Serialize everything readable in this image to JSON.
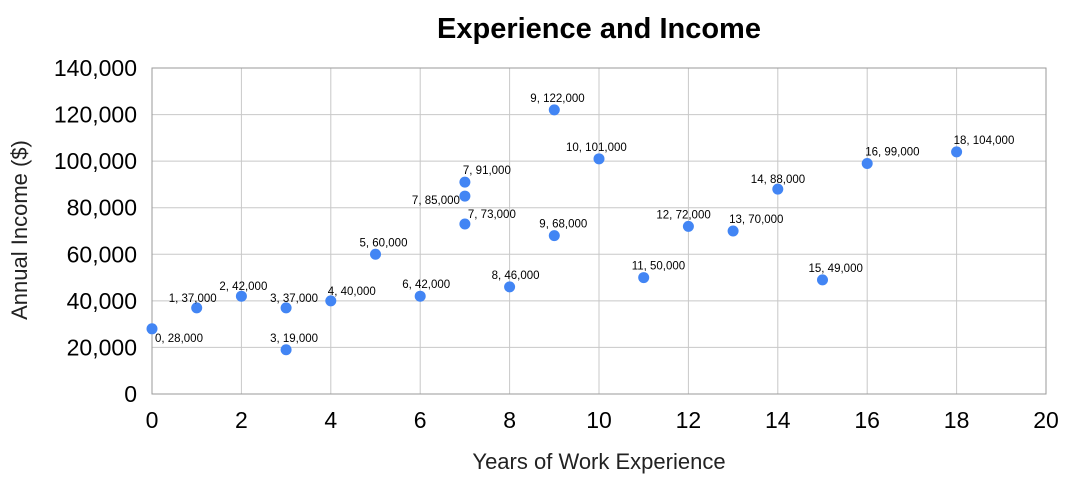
{
  "chart_data": {
    "type": "scatter",
    "title": "Experience and Income",
    "xlabel": "Years of Work Experience",
    "ylabel": "Annual Income ($)",
    "xlim": [
      0,
      20
    ],
    "ylim": [
      0,
      140000
    ],
    "x_ticks": [
      "0",
      "2",
      "4",
      "6",
      "8",
      "10",
      "12",
      "14",
      "16",
      "18",
      "20"
    ],
    "y_ticks": [
      "0",
      "20,000",
      "40,000",
      "60,000",
      "80,000",
      "100,000",
      "120,000",
      "140,000"
    ],
    "grid": true,
    "legend": "none",
    "colors": {
      "point": "#4285f4"
    },
    "points": [
      {
        "x": 0,
        "y": 28000,
        "label": "0, 28,000"
      },
      {
        "x": 1,
        "y": 37000,
        "label": "1, 37,000"
      },
      {
        "x": 2,
        "y": 42000,
        "label": "2, 42,000"
      },
      {
        "x": 3,
        "y": 37000,
        "label": "3, 37,000"
      },
      {
        "x": 3,
        "y": 19000,
        "label": "3, 19,000"
      },
      {
        "x": 4,
        "y": 40000,
        "label": "4, 40,000"
      },
      {
        "x": 5,
        "y": 60000,
        "label": "5, 60,000"
      },
      {
        "x": 6,
        "y": 42000,
        "label": "6, 42,000"
      },
      {
        "x": 7,
        "y": 91000,
        "label": "7, 91,000"
      },
      {
        "x": 7,
        "y": 85000,
        "label": "7, 85,000"
      },
      {
        "x": 7,
        "y": 73000,
        "label": "7, 73,000"
      },
      {
        "x": 8,
        "y": 46000,
        "label": "8, 46,000"
      },
      {
        "x": 9,
        "y": 122000,
        "label": "9, 122,000"
      },
      {
        "x": 9,
        "y": 68000,
        "label": "9, 68,000"
      },
      {
        "x": 10,
        "y": 101000,
        "label": "10, 101,000"
      },
      {
        "x": 11,
        "y": 50000,
        "label": "11, 50,000"
      },
      {
        "x": 12,
        "y": 72000,
        "label": "12, 72,000"
      },
      {
        "x": 13,
        "y": 70000,
        "label": "13, 70,000"
      },
      {
        "x": 14,
        "y": 88000,
        "label": "14, 88,000"
      },
      {
        "x": 15,
        "y": 49000,
        "label": "15, 49,000"
      },
      {
        "x": 16,
        "y": 99000,
        "label": "16, 99,000"
      },
      {
        "x": 18,
        "y": 104000,
        "label": "18, 104,000"
      }
    ]
  }
}
